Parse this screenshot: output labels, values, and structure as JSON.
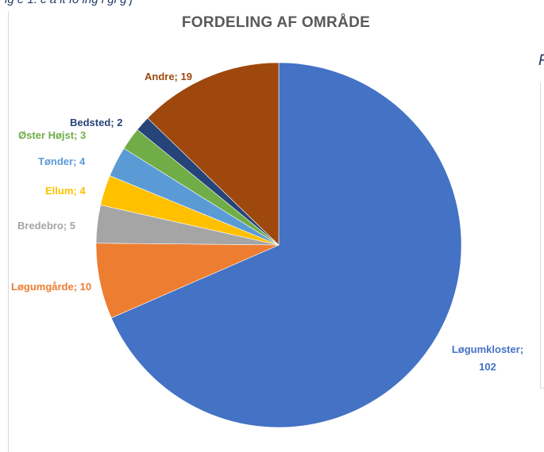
{
  "top_fragment": "ig e 1.   c a  lt  fo  ing  i gi  g   j",
  "right_fragment": "F",
  "chart_data": {
    "type": "pie",
    "title": "FORDELING AF OMRÅDE",
    "slices": [
      {
        "label": "Løgumkloster",
        "value": 102,
        "color": "#4472c4",
        "text": "Løgumkloster;",
        "text2": "102"
      },
      {
        "label": "Løgumgårde",
        "value": 10,
        "color": "#ed7d31",
        "text": "Løgumgårde; 10"
      },
      {
        "label": "Bredebro",
        "value": 5,
        "color": "#a5a5a5",
        "text": "Bredebro; 5"
      },
      {
        "label": "Ellum",
        "value": 4,
        "color": "#ffc000",
        "text": "Ellum; 4"
      },
      {
        "label": "Tønder",
        "value": 4,
        "color": "#5b9bd5",
        "text": "Tønder; 4"
      },
      {
        "label": "Øster Højst",
        "value": 3,
        "color": "#70ad47",
        "text": "Øster Højst; 3"
      },
      {
        "label": "Bedsted",
        "value": 2,
        "color": "#264478",
        "text": "Bedsted; 2"
      },
      {
        "label": "Andre",
        "value": 19,
        "color": "#9e480e",
        "text": "Andre; 19"
      }
    ],
    "label_colors": {
      "Løgumkloster": "#4472c4",
      "Løgumgårde": "#ed7d31",
      "Bredebro": "#a5a5a5",
      "Ellum": "#ffc000",
      "Tønder": "#5b9bd5",
      "Øster Højst": "#70ad47",
      "Bedsted": "#264478",
      "Andre": "#9e480e"
    }
  }
}
